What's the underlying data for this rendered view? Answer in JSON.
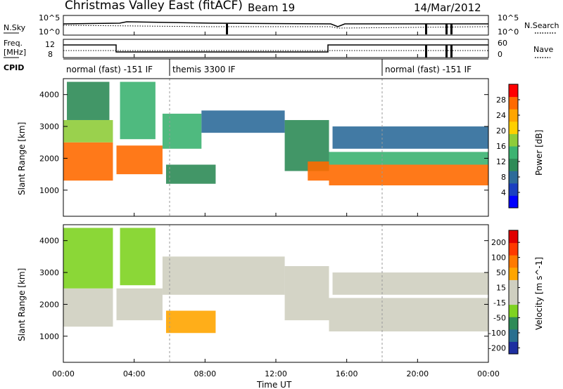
{
  "header": {
    "title": "Christmas Valley East (fitACF)",
    "beam": "Beam 19",
    "date": "14/Mar/2012"
  },
  "top_panels": {
    "nsky_label": "N.Sky",
    "nsky_ticks": [
      "10^5",
      "10^0"
    ],
    "nsearch_label": "N.Search",
    "nsearch_ticks": [
      "10^5",
      "10^0"
    ],
    "freq_label_1": "Freq.",
    "freq_label_2": "[MHz]",
    "freq_ticks": [
      "12",
      "8"
    ],
    "nave_label": "Nave",
    "nave_ticks": [
      "60",
      "0"
    ],
    "cpid_label": "CPID",
    "cpid_segments": [
      {
        "label": "normal (fast) -151 IF",
        "start_h": 0,
        "end_h": 6
      },
      {
        "label": "themis 3300 IF",
        "start_h": 6,
        "end_h": 18
      },
      {
        "label": "normal (fast) -151 IF",
        "start_h": 18,
        "end_h": 24
      }
    ]
  },
  "time_axis": {
    "label": "Time UT",
    "ticks": [
      "00:00",
      "04:00",
      "08:00",
      "12:00",
      "16:00",
      "20:00",
      "00:00"
    ]
  },
  "colors": {
    "power_scale": [
      "#0000ff",
      "#1a3fc0",
      "#2d6b9a",
      "#2e8b57",
      "#3cb371",
      "#8fcc3a",
      "#ffd000",
      "#ffa500",
      "#ff6a00",
      "#ff0000"
    ],
    "velocity_scale": [
      "#1e2fa0",
      "#2a6f8f",
      "#2e8b57",
      "#7ed321",
      "#cfcfc0",
      "#cfcfc0",
      "#ffa500",
      "#ff7a00",
      "#ff3a00",
      "#e00000"
    ]
  },
  "chart_data": [
    {
      "type": "heatmap",
      "name": "power",
      "ylabel": "Slant Range [km]",
      "xlabel": "",
      "xlim_hours": [
        0,
        24
      ],
      "ylim": [
        180,
        4500
      ],
      "yticks": [
        1000,
        2000,
        3000,
        4000
      ],
      "colorbar_label": "Power [dB]",
      "colorbar_ticks": [
        "4",
        "8",
        "12",
        "16",
        "20",
        "24",
        "28"
      ],
      "colorbar_range": [
        0,
        30
      ],
      "bands": [
        {
          "start_h": 0.0,
          "end_h": 2.8,
          "r_lo": 1300,
          "r_hi": 2500,
          "value": 26
        },
        {
          "start_h": 0.0,
          "end_h": 2.8,
          "r_lo": 2500,
          "r_hi": 3200,
          "value": 16
        },
        {
          "start_h": 0.2,
          "end_h": 2.6,
          "r_lo": 3200,
          "r_hi": 4400,
          "value": 10
        },
        {
          "start_h": 3.0,
          "end_h": 5.6,
          "r_lo": 1500,
          "r_hi": 2400,
          "value": 24
        },
        {
          "start_h": 3.2,
          "end_h": 5.2,
          "r_lo": 2600,
          "r_hi": 4400,
          "value": 12
        },
        {
          "start_h": 5.6,
          "end_h": 7.8,
          "r_lo": 2300,
          "r_hi": 3400,
          "value": 14
        },
        {
          "start_h": 5.8,
          "end_h": 8.6,
          "r_lo": 1200,
          "r_hi": 1800,
          "value": 10
        },
        {
          "start_h": 7.8,
          "end_h": 12.5,
          "r_lo": 2800,
          "r_hi": 3500,
          "value": 8
        },
        {
          "start_h": 12.5,
          "end_h": 15.0,
          "r_lo": 1600,
          "r_hi": 3200,
          "value": 10
        },
        {
          "start_h": 13.8,
          "end_h": 15.0,
          "r_lo": 1300,
          "r_hi": 1900,
          "value": 24
        },
        {
          "start_h": 15.0,
          "end_h": 24.0,
          "r_lo": 1150,
          "r_hi": 1800,
          "value": 26
        },
        {
          "start_h": 15.0,
          "end_h": 24.0,
          "r_lo": 1800,
          "r_hi": 2200,
          "value": 12
        },
        {
          "start_h": 15.2,
          "end_h": 24.0,
          "r_lo": 2300,
          "r_hi": 3000,
          "value": 6
        }
      ]
    },
    {
      "type": "heatmap",
      "name": "velocity",
      "ylabel": "Slant Range [km]",
      "xlabel": "Time UT",
      "xlim_hours": [
        0,
        24
      ],
      "ylim": [
        180,
        4500
      ],
      "yticks": [
        1000,
        2000,
        3000,
        4000
      ],
      "colorbar_label": "Velocity [m s^-1]",
      "colorbar_ticks": [
        "200",
        "100",
        "50",
        "15",
        "-15",
        "-50",
        "-100",
        "-200"
      ],
      "colorbar_range": [
        -250,
        250
      ],
      "bands": [
        {
          "start_h": 0.0,
          "end_h": 2.8,
          "r_lo": 1300,
          "r_hi": 2500,
          "value": 0
        },
        {
          "start_h": 0.0,
          "end_h": 2.8,
          "r_lo": 2500,
          "r_hi": 4400,
          "value": -60
        },
        {
          "start_h": 3.0,
          "end_h": 5.6,
          "r_lo": 1500,
          "r_hi": 2500,
          "value": -40
        },
        {
          "start_h": 3.2,
          "end_h": 5.2,
          "r_lo": 2600,
          "r_hi": 4400,
          "value": -80
        },
        {
          "start_h": 5.6,
          "end_h": 12.5,
          "r_lo": 2300,
          "r_hi": 3500,
          "value": 0
        },
        {
          "start_h": 5.8,
          "end_h": 8.6,
          "r_lo": 1100,
          "r_hi": 1800,
          "value": 60
        },
        {
          "start_h": 12.5,
          "end_h": 15.0,
          "r_lo": 1500,
          "r_hi": 3200,
          "value": 40
        },
        {
          "start_h": 15.0,
          "end_h": 24.0,
          "r_lo": 1150,
          "r_hi": 2200,
          "value": 0
        },
        {
          "start_h": 15.2,
          "end_h": 24.0,
          "r_lo": 2300,
          "r_hi": 3000,
          "value": 0
        }
      ]
    }
  ]
}
